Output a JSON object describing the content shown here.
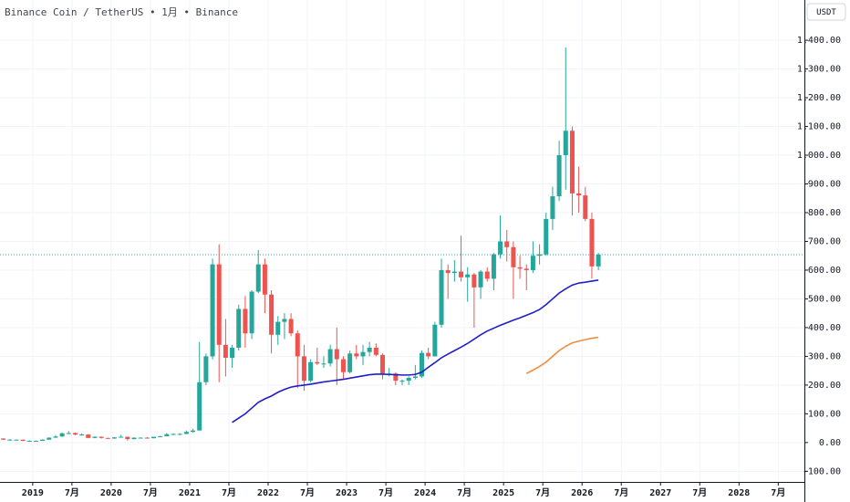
{
  "chart_data": {
    "type": "candlestick",
    "title": "Binance Coin / TetherUS • 1月 • Binance",
    "currency": "USDT",
    "up_color": "#26a69a",
    "down_color": "#ef5350",
    "grid": true,
    "x": [
      "2018-08",
      "2018-09",
      "2018-10",
      "2018-11",
      "2018-12",
      "2019-01",
      "2019-02",
      "2019-03",
      "2019-04",
      "2019-05",
      "2019-06",
      "2019-07",
      "2019-08",
      "2019-09",
      "2019-10",
      "2019-11",
      "2019-12",
      "2020-01",
      "2020-02",
      "2020-03",
      "2020-04",
      "2020-05",
      "2020-06",
      "2020-07",
      "2020-08",
      "2020-09",
      "2020-10",
      "2020-11",
      "2020-12",
      "2021-01",
      "2021-02",
      "2021-03",
      "2021-04",
      "2021-05",
      "2021-06",
      "2021-07",
      "2021-08",
      "2021-09",
      "2021-10",
      "2021-11",
      "2021-12",
      "2022-01",
      "2022-02",
      "2022-03",
      "2022-04",
      "2022-05",
      "2022-06",
      "2022-07",
      "2022-08",
      "2022-09",
      "2022-10",
      "2022-11",
      "2022-12",
      "2023-01",
      "2023-02",
      "2023-03",
      "2023-04",
      "2023-05",
      "2023-06",
      "2023-07",
      "2023-08",
      "2023-09",
      "2023-10",
      "2023-11",
      "2023-12",
      "2024-01",
      "2024-02",
      "2024-03",
      "2024-04",
      "2024-05",
      "2024-06",
      "2024-07",
      "2024-08",
      "2024-09",
      "2024-10",
      "2024-11",
      "2024-12",
      "2025-01",
      "2025-02",
      "2025-03",
      "2025-04",
      "2025-05",
      "2025-06",
      "2025-07",
      "2025-08",
      "2025-09",
      "2025-10",
      "2025-11",
      "2025-12",
      "2026-01",
      "2026-02",
      "2026-03"
    ],
    "open": [
      14,
      10,
      10,
      10,
      6,
      6,
      6,
      10,
      17,
      21,
      32,
      33,
      28,
      28,
      16,
      20,
      16,
      14,
      18,
      20,
      12,
      17,
      17,
      15,
      20,
      22,
      29,
      30,
      30,
      37,
      42,
      210,
      300,
      620,
      340,
      295,
      330,
      465,
      380,
      525,
      620,
      515,
      375,
      420,
      430,
      380,
      300,
      215,
      280,
      275,
      275,
      325,
      290,
      245,
      310,
      300,
      315,
      330,
      305,
      240,
      240,
      215,
      215,
      225,
      230,
      312,
      300,
      410,
      600,
      590,
      595,
      575,
      585,
      540,
      595,
      570,
      655,
      700,
      680,
      610,
      605,
      600,
      650,
      655,
      778,
      857,
      1000,
      1085,
      867,
      860,
      778,
      613
    ],
    "high": [
      15,
      12,
      11,
      10,
      7,
      7,
      11,
      18,
      26,
      35,
      40,
      35,
      32,
      29,
      22,
      21,
      17,
      19,
      27,
      21,
      18,
      18,
      19,
      20,
      24,
      33,
      32,
      33,
      42,
      48,
      350,
      310,
      640,
      690,
      430,
      340,
      480,
      510,
      530,
      670,
      640,
      530,
      440,
      450,
      450,
      390,
      340,
      290,
      330,
      300,
      340,
      400,
      300,
      320,
      340,
      340,
      350,
      345,
      310,
      260,
      245,
      220,
      230,
      270,
      320,
      330,
      420,
      640,
      620,
      635,
      720,
      610,
      590,
      600,
      610,
      660,
      790,
      740,
      700,
      650,
      620,
      700,
      690,
      800,
      890,
      1050,
      1375,
      1100,
      960,
      890,
      800,
      660
    ],
    "low": [
      9,
      9,
      9,
      5,
      4,
      5,
      6,
      10,
      16,
      20,
      29,
      25,
      24,
      15,
      15,
      14,
      13,
      13,
      18,
      7,
      11,
      14,
      15,
      15,
      19,
      21,
      26,
      26,
      29,
      35,
      42,
      200,
      290,
      210,
      230,
      260,
      320,
      330,
      360,
      520,
      450,
      310,
      340,
      360,
      370,
      190,
      180,
      210,
      270,
      260,
      265,
      200,
      220,
      240,
      290,
      270,
      300,
      300,
      220,
      230,
      200,
      200,
      200,
      220,
      225,
      290,
      300,
      400,
      500,
      560,
      560,
      490,
      400,
      500,
      560,
      530,
      640,
      630,
      500,
      570,
      530,
      590,
      620,
      650,
      740,
      840,
      880,
      790,
      800,
      770,
      570,
      600
    ],
    "close": [
      10,
      10,
      10,
      6,
      6,
      6,
      10,
      17,
      21,
      32,
      33,
      28,
      28,
      16,
      20,
      16,
      14,
      18,
      20,
      12,
      17,
      17,
      15,
      20,
      22,
      29,
      30,
      30,
      37,
      42,
      210,
      300,
      620,
      340,
      295,
      330,
      465,
      380,
      525,
      620,
      515,
      375,
      420,
      430,
      380,
      300,
      215,
      280,
      275,
      275,
      325,
      290,
      245,
      310,
      300,
      315,
      330,
      305,
      240,
      240,
      215,
      215,
      225,
      230,
      312,
      300,
      410,
      600,
      590,
      595,
      575,
      585,
      540,
      595,
      570,
      655,
      700,
      680,
      610,
      605,
      600,
      650,
      655,
      778,
      857,
      1000,
      1085,
      867,
      860,
      778,
      613,
      654
    ],
    "lines": [
      {
        "color": "#1f1fc8",
        "x": [
          "2021-07",
          "2021-08",
          "2021-09",
          "2021-10",
          "2021-11",
          "2021-12",
          "2022-01",
          "2022-02",
          "2022-03",
          "2022-04",
          "2022-05",
          "2022-06",
          "2022-07",
          "2022-08",
          "2022-09",
          "2022-10",
          "2022-11",
          "2022-12",
          "2023-01",
          "2023-02",
          "2023-03",
          "2023-04",
          "2023-05",
          "2023-06",
          "2023-07",
          "2023-08",
          "2023-09",
          "2023-10",
          "2023-11",
          "2023-12",
          "2024-01",
          "2024-02",
          "2024-03",
          "2024-04",
          "2024-05",
          "2024-06",
          "2024-07",
          "2024-08",
          "2024-09",
          "2024-10",
          "2024-11",
          "2024-12",
          "2025-01",
          "2025-02",
          "2025-03",
          "2025-04",
          "2025-05",
          "2025-06",
          "2025-07",
          "2025-08",
          "2025-09",
          "2025-10",
          "2025-11",
          "2025-12",
          "2026-01",
          "2026-02",
          "2026-03"
        ],
        "values": [
          70,
          85,
          100,
          120,
          140,
          152,
          162,
          175,
          185,
          193,
          197,
          200,
          203,
          207,
          211,
          214,
          217,
          220,
          224,
          228,
          232,
          236,
          238,
          238,
          237,
          236,
          235,
          235,
          237,
          245,
          262,
          278,
          295,
          308,
          320,
          332,
          345,
          360,
          375,
          388,
          398,
          408,
          417,
          426,
          434,
          443,
          452,
          463,
          480,
          500,
          520,
          535,
          548,
          555,
          558,
          562,
          565
        ]
      },
      {
        "color": "#f28c3c",
        "x": [
          "2025-04",
          "2025-05",
          "2025-06",
          "2025-07",
          "2025-08",
          "2025-09",
          "2025-10",
          "2025-11",
          "2025-12",
          "2026-01",
          "2026-02",
          "2026-03"
        ],
        "values": [
          240,
          252,
          265,
          280,
          300,
          320,
          335,
          347,
          353,
          358,
          363,
          366
        ]
      }
    ],
    "ylim": [
      -137,
      1540
    ],
    "yticks": [
      {
        "value": 1400,
        "label": "1,400.00"
      },
      {
        "value": 1300,
        "label": "1,300.00"
      },
      {
        "value": 1200,
        "label": "1,200.00"
      },
      {
        "value": 1100,
        "label": "1,100.00"
      },
      {
        "value": 1000,
        "label": "1,000.00"
      },
      {
        "value": 900,
        "label": "900.00"
      },
      {
        "value": 800,
        "label": "800.00"
      },
      {
        "value": 700,
        "label": "700.00"
      },
      {
        "value": 600,
        "label": "600.00"
      },
      {
        "value": 500,
        "label": "500.00"
      },
      {
        "value": 400,
        "label": "400.00"
      },
      {
        "value": 300,
        "label": "300.00"
      },
      {
        "value": 200,
        "label": "200.00"
      },
      {
        "value": 100,
        "label": "100.00"
      },
      {
        "value": 0,
        "label": "0.00"
      },
      {
        "value": -100,
        "label": "-100.00"
      }
    ],
    "xlim": [
      "2018-08",
      "2028-10"
    ],
    "xticks": [
      {
        "value": "2019-01",
        "label": "2019"
      },
      {
        "value": "2019-07",
        "label": "7月"
      },
      {
        "value": "2020-01",
        "label": "2020"
      },
      {
        "value": "2020-07",
        "label": "7月"
      },
      {
        "value": "2021-01",
        "label": "2021"
      },
      {
        "value": "2021-07",
        "label": "7月"
      },
      {
        "value": "2022-01",
        "label": "2022"
      },
      {
        "value": "2022-07",
        "label": "7月"
      },
      {
        "value": "2023-01",
        "label": "2023"
      },
      {
        "value": "2023-07",
        "label": "7月"
      },
      {
        "value": "2024-01",
        "label": "2024"
      },
      {
        "value": "2024-07",
        "label": "7月"
      },
      {
        "value": "2025-01",
        "label": "2025"
      },
      {
        "value": "2025-07",
        "label": "7月"
      },
      {
        "value": "2026-01",
        "label": "2026"
      },
      {
        "value": "2026-07",
        "label": "7月"
      },
      {
        "value": "2027-01",
        "label": "2027"
      },
      {
        "value": "2027-07",
        "label": "7月"
      },
      {
        "value": "2028-01",
        "label": "2028"
      },
      {
        "value": "2028-07",
        "label": "7月"
      }
    ]
  }
}
